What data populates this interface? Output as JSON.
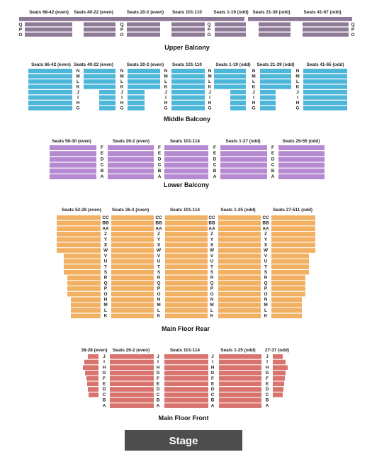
{
  "colors": {
    "upper_balcony": "#8e7a96",
    "middle_balcony": "#4db6d9",
    "lower_balcony": "#b58ad1",
    "main_floor_rear": "#f2b063",
    "main_floor_front": "#d9736e",
    "stage": "#4d4d4d"
  },
  "sections": {
    "upper_balcony": {
      "title": "Upper Balcony",
      "labels": [
        "Seats 68-42 (even)",
        "Seats 40-22 (even)",
        "Seats 20-2 (even)",
        "Seats 101-110",
        "Seats 1-19 (odd)",
        "Seats 21-39 (odd)",
        "Seats 41-67 (odd)"
      ],
      "rows": [
        "Q",
        "P",
        "O"
      ]
    },
    "middle_balcony": {
      "title": "Middle Balcony",
      "labels": [
        "Seats 66-42 (even)",
        "Seats 40-22 (even)",
        "Seats 20-2 (even)",
        "Seats 101-110",
        "Seats 1-19 (odd)",
        "Seats 21-39 (odd)",
        "Seats 41-65 (odd)"
      ],
      "rows": [
        "N",
        "M",
        "L",
        "K",
        "J",
        "I",
        "H",
        "G"
      ]
    },
    "lower_balcony": {
      "title": "Lower Balcony",
      "labels": [
        "Seats 56-30 (even)",
        "Seats 26-2 (even)",
        "Seats 101-114",
        "Seats 1-27 (odd)",
        "Seats 29-55 (odd)"
      ],
      "rows": [
        "F",
        "E",
        "D",
        "C",
        "B",
        "A"
      ]
    },
    "main_floor_rear": {
      "title": "Main Floor Rear",
      "labels": [
        "Seats 52-28 (even)",
        "Seats 26-2 (even)",
        "Seats 101-114",
        "Seats 1-25 (odd)",
        "Seats 27-511 (odd)"
      ],
      "rows": [
        "CC",
        "BB",
        "AA",
        "Z",
        "Y",
        "X",
        "W",
        "V",
        "U",
        "T",
        "S",
        "R",
        "Q",
        "P",
        "O",
        "N",
        "M",
        "L",
        "K"
      ]
    },
    "main_floor_front": {
      "title": "Main Floor Front",
      "labels": [
        "38-28 (even)",
        "Seats 26-2 (even)",
        "Seats 101-114",
        "Seats 1-25 (odd)",
        "27-37 (odd)"
      ],
      "rows": [
        "J",
        "I",
        "H",
        "G",
        "F",
        "E",
        "D",
        "C",
        "B",
        "A"
      ]
    }
  },
  "stage": {
    "label": "Stage"
  }
}
